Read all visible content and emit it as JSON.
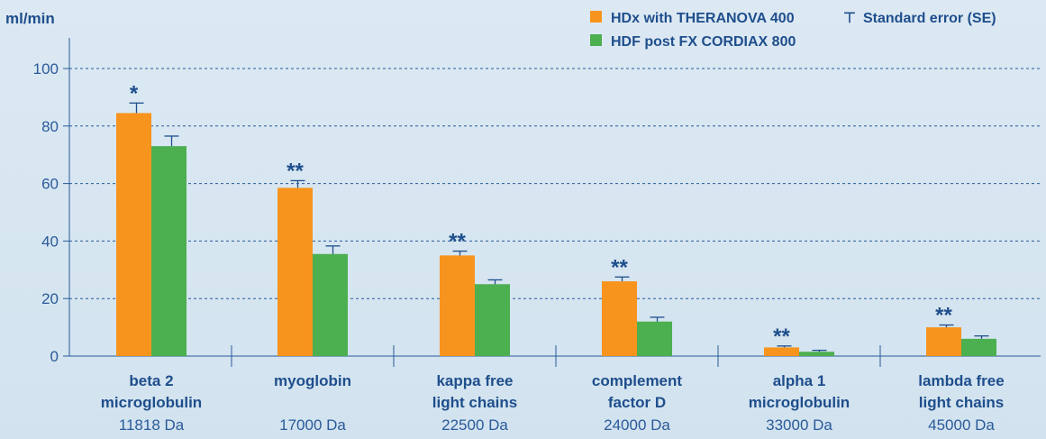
{
  "chart_data": {
    "type": "bar",
    "ylabel": "ml/min",
    "ylim": [
      0,
      110
    ],
    "yticks": [
      0,
      20,
      40,
      60,
      80,
      100
    ],
    "grid": "horizontal dashed",
    "legend_position": "top-right",
    "categories": [
      {
        "name_lines": [
          "beta 2",
          "microglobulin"
        ],
        "mass": "11818 Da",
        "significance": "*"
      },
      {
        "name_lines": [
          "myoglobin"
        ],
        "mass": "17000 Da",
        "significance": "**"
      },
      {
        "name_lines": [
          "kappa free",
          "light chains"
        ],
        "mass": "22500 Da",
        "significance": "**"
      },
      {
        "name_lines": [
          "complement",
          "factor D"
        ],
        "mass": "24000 Da",
        "significance": "**"
      },
      {
        "name_lines": [
          "alpha 1",
          "microglobulin"
        ],
        "mass": "33000 Da",
        "significance": "**"
      },
      {
        "name_lines": [
          "lambda free",
          "light chains"
        ],
        "mass": "45000 Da",
        "significance": "**"
      }
    ],
    "series": [
      {
        "name": "HDx with THERANOVA 400",
        "color": "#f7941d",
        "values": [
          84.5,
          58.5,
          35,
          26,
          3,
          10
        ],
        "se": [
          3.5,
          2.5,
          1.5,
          1.5,
          0.5,
          0.8
        ]
      },
      {
        "name": "HDF post FX CORDIAX 800",
        "color": "#4caf50",
        "values": [
          73,
          35.5,
          25,
          12,
          1.5,
          6
        ],
        "se": [
          3.5,
          2.8,
          1.5,
          1.5,
          0.5,
          1
        ]
      }
    ],
    "error_legend": {
      "symbol": "⊤",
      "label": "Standard error (SE)"
    }
  }
}
